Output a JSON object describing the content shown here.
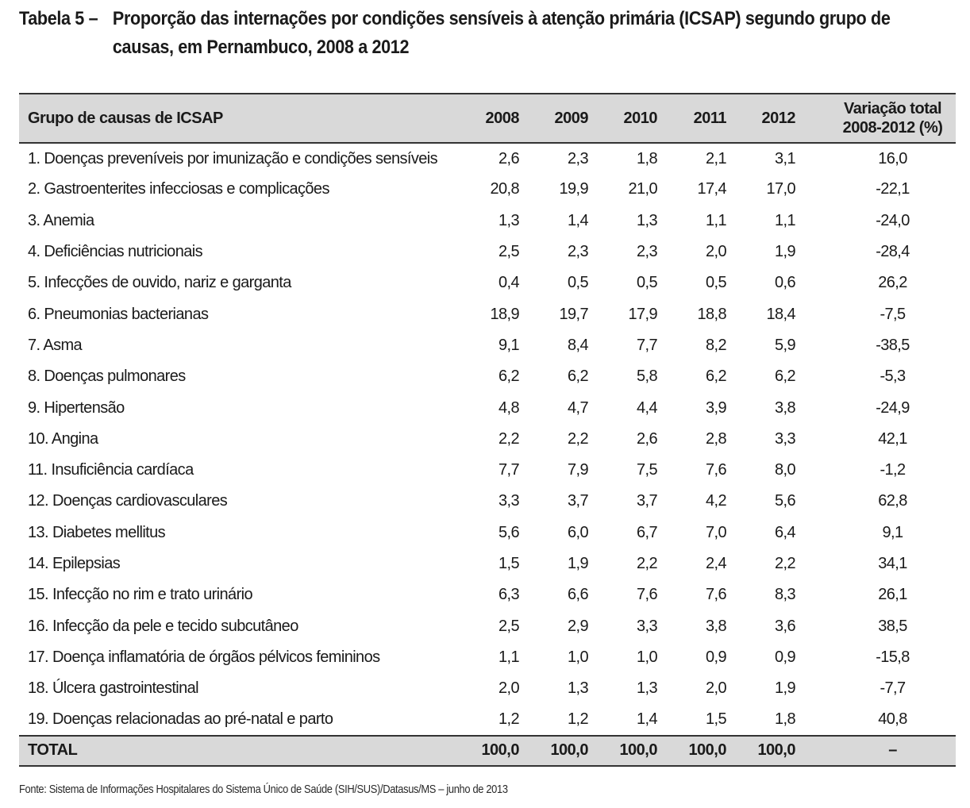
{
  "caption": {
    "label": "Tabela 5 –",
    "title": "Proporção das internações por condições sensíveis à atenção primária (ICSAP) segundo grupo de causas, em Pernambuco, 2008 a 2012"
  },
  "table": {
    "headers": {
      "group": "Grupo de causas de ICSAP",
      "years": [
        "2008",
        "2009",
        "2010",
        "2011",
        "2012"
      ],
      "variation_line1": "Variação total",
      "variation_line2": "2008-2012 (%)"
    },
    "rows": [
      {
        "name": "1.  Doenças preveníveis por imunização e condições sensíveis",
        "values": [
          "2,6",
          "2,3",
          "1,8",
          "2,1",
          "3,1"
        ],
        "variation": "16,0"
      },
      {
        "name": "2.  Gastroenterites infecciosas e complicações",
        "values": [
          "20,8",
          "19,9",
          "21,0",
          "17,4",
          "17,0"
        ],
        "variation": "-22,1"
      },
      {
        "name": "3.  Anemia",
        "values": [
          "1,3",
          "1,4",
          "1,3",
          "1,1",
          "1,1"
        ],
        "variation": "-24,0"
      },
      {
        "name": "4.  Deficiências nutricionais",
        "values": [
          "2,5",
          "2,3",
          "2,3",
          "2,0",
          "1,9"
        ],
        "variation": "-28,4"
      },
      {
        "name": "5.  Infecções de ouvido, nariz e garganta",
        "values": [
          "0,4",
          "0,5",
          "0,5",
          "0,5",
          "0,6"
        ],
        "variation": "26,2"
      },
      {
        "name": "6.  Pneumonias bacterianas",
        "values": [
          "18,9",
          "19,7",
          "17,9",
          "18,8",
          "18,4"
        ],
        "variation": "-7,5"
      },
      {
        "name": "7.  Asma",
        "values": [
          "9,1",
          "8,4",
          "7,7",
          "8,2",
          "5,9"
        ],
        "variation": "-38,5"
      },
      {
        "name": "8.  Doenças pulmonares",
        "values": [
          "6,2",
          "6,2",
          "5,8",
          "6,2",
          "6,2"
        ],
        "variation": "-5,3"
      },
      {
        "name": "9.  Hipertensão",
        "values": [
          "4,8",
          "4,7",
          "4,4",
          "3,9",
          "3,8"
        ],
        "variation": "-24,9"
      },
      {
        "name": "10. Angina",
        "values": [
          "2,2",
          "2,2",
          "2,6",
          "2,8",
          "3,3"
        ],
        "variation": "42,1"
      },
      {
        "name": "11. Insuficiência cardíaca",
        "values": [
          "7,7",
          "7,9",
          "7,5",
          "7,6",
          "8,0"
        ],
        "variation": "-1,2"
      },
      {
        "name": "12. Doenças cardiovasculares",
        "values": [
          "3,3",
          "3,7",
          "3,7",
          "4,2",
          "5,6"
        ],
        "variation": "62,8"
      },
      {
        "name": "13. Diabetes mellitus",
        "values": [
          "5,6",
          "6,0",
          "6,7",
          "7,0",
          "6,4"
        ],
        "variation": "9,1"
      },
      {
        "name": "14. Epilepsias",
        "values": [
          "1,5",
          "1,9",
          "2,2",
          "2,4",
          "2,2"
        ],
        "variation": "34,1"
      },
      {
        "name": "15. Infecção no rim e trato urinário",
        "values": [
          "6,3",
          "6,6",
          "7,6",
          "7,6",
          "8,3"
        ],
        "variation": "26,1"
      },
      {
        "name": "16. Infecção da pele e tecido subcutâneo",
        "values": [
          "2,5",
          "2,9",
          "3,3",
          "3,8",
          "3,6"
        ],
        "variation": "38,5"
      },
      {
        "name": "17. Doença inflamatória de órgãos pélvicos femininos",
        "values": [
          "1,1",
          "1,0",
          "1,0",
          "0,9",
          "0,9"
        ],
        "variation": "-15,8"
      },
      {
        "name": "18. Úlcera gastrointestinal",
        "values": [
          "2,0",
          "1,3",
          "1,3",
          "2,0",
          "1,9"
        ],
        "variation": "-7,7"
      },
      {
        "name": "19. Doenças relacionadas ao pré-natal e parto",
        "values": [
          "1,2",
          "1,2",
          "1,4",
          "1,5",
          "1,8"
        ],
        "variation": "40,8"
      }
    ],
    "total": {
      "label": "TOTAL",
      "values": [
        "100,0",
        "100,0",
        "100,0",
        "100,0",
        "100,0"
      ],
      "variation": "–"
    }
  },
  "source": "Fonte: Sistema de Informações Hospitalares do Sistema Único de Saúde (SIH/SUS)/Datasus/MS – junho de 2013",
  "colors": {
    "header_background": "#d9d9d9",
    "rule": "#333333",
    "text": "#1a1a1a"
  }
}
